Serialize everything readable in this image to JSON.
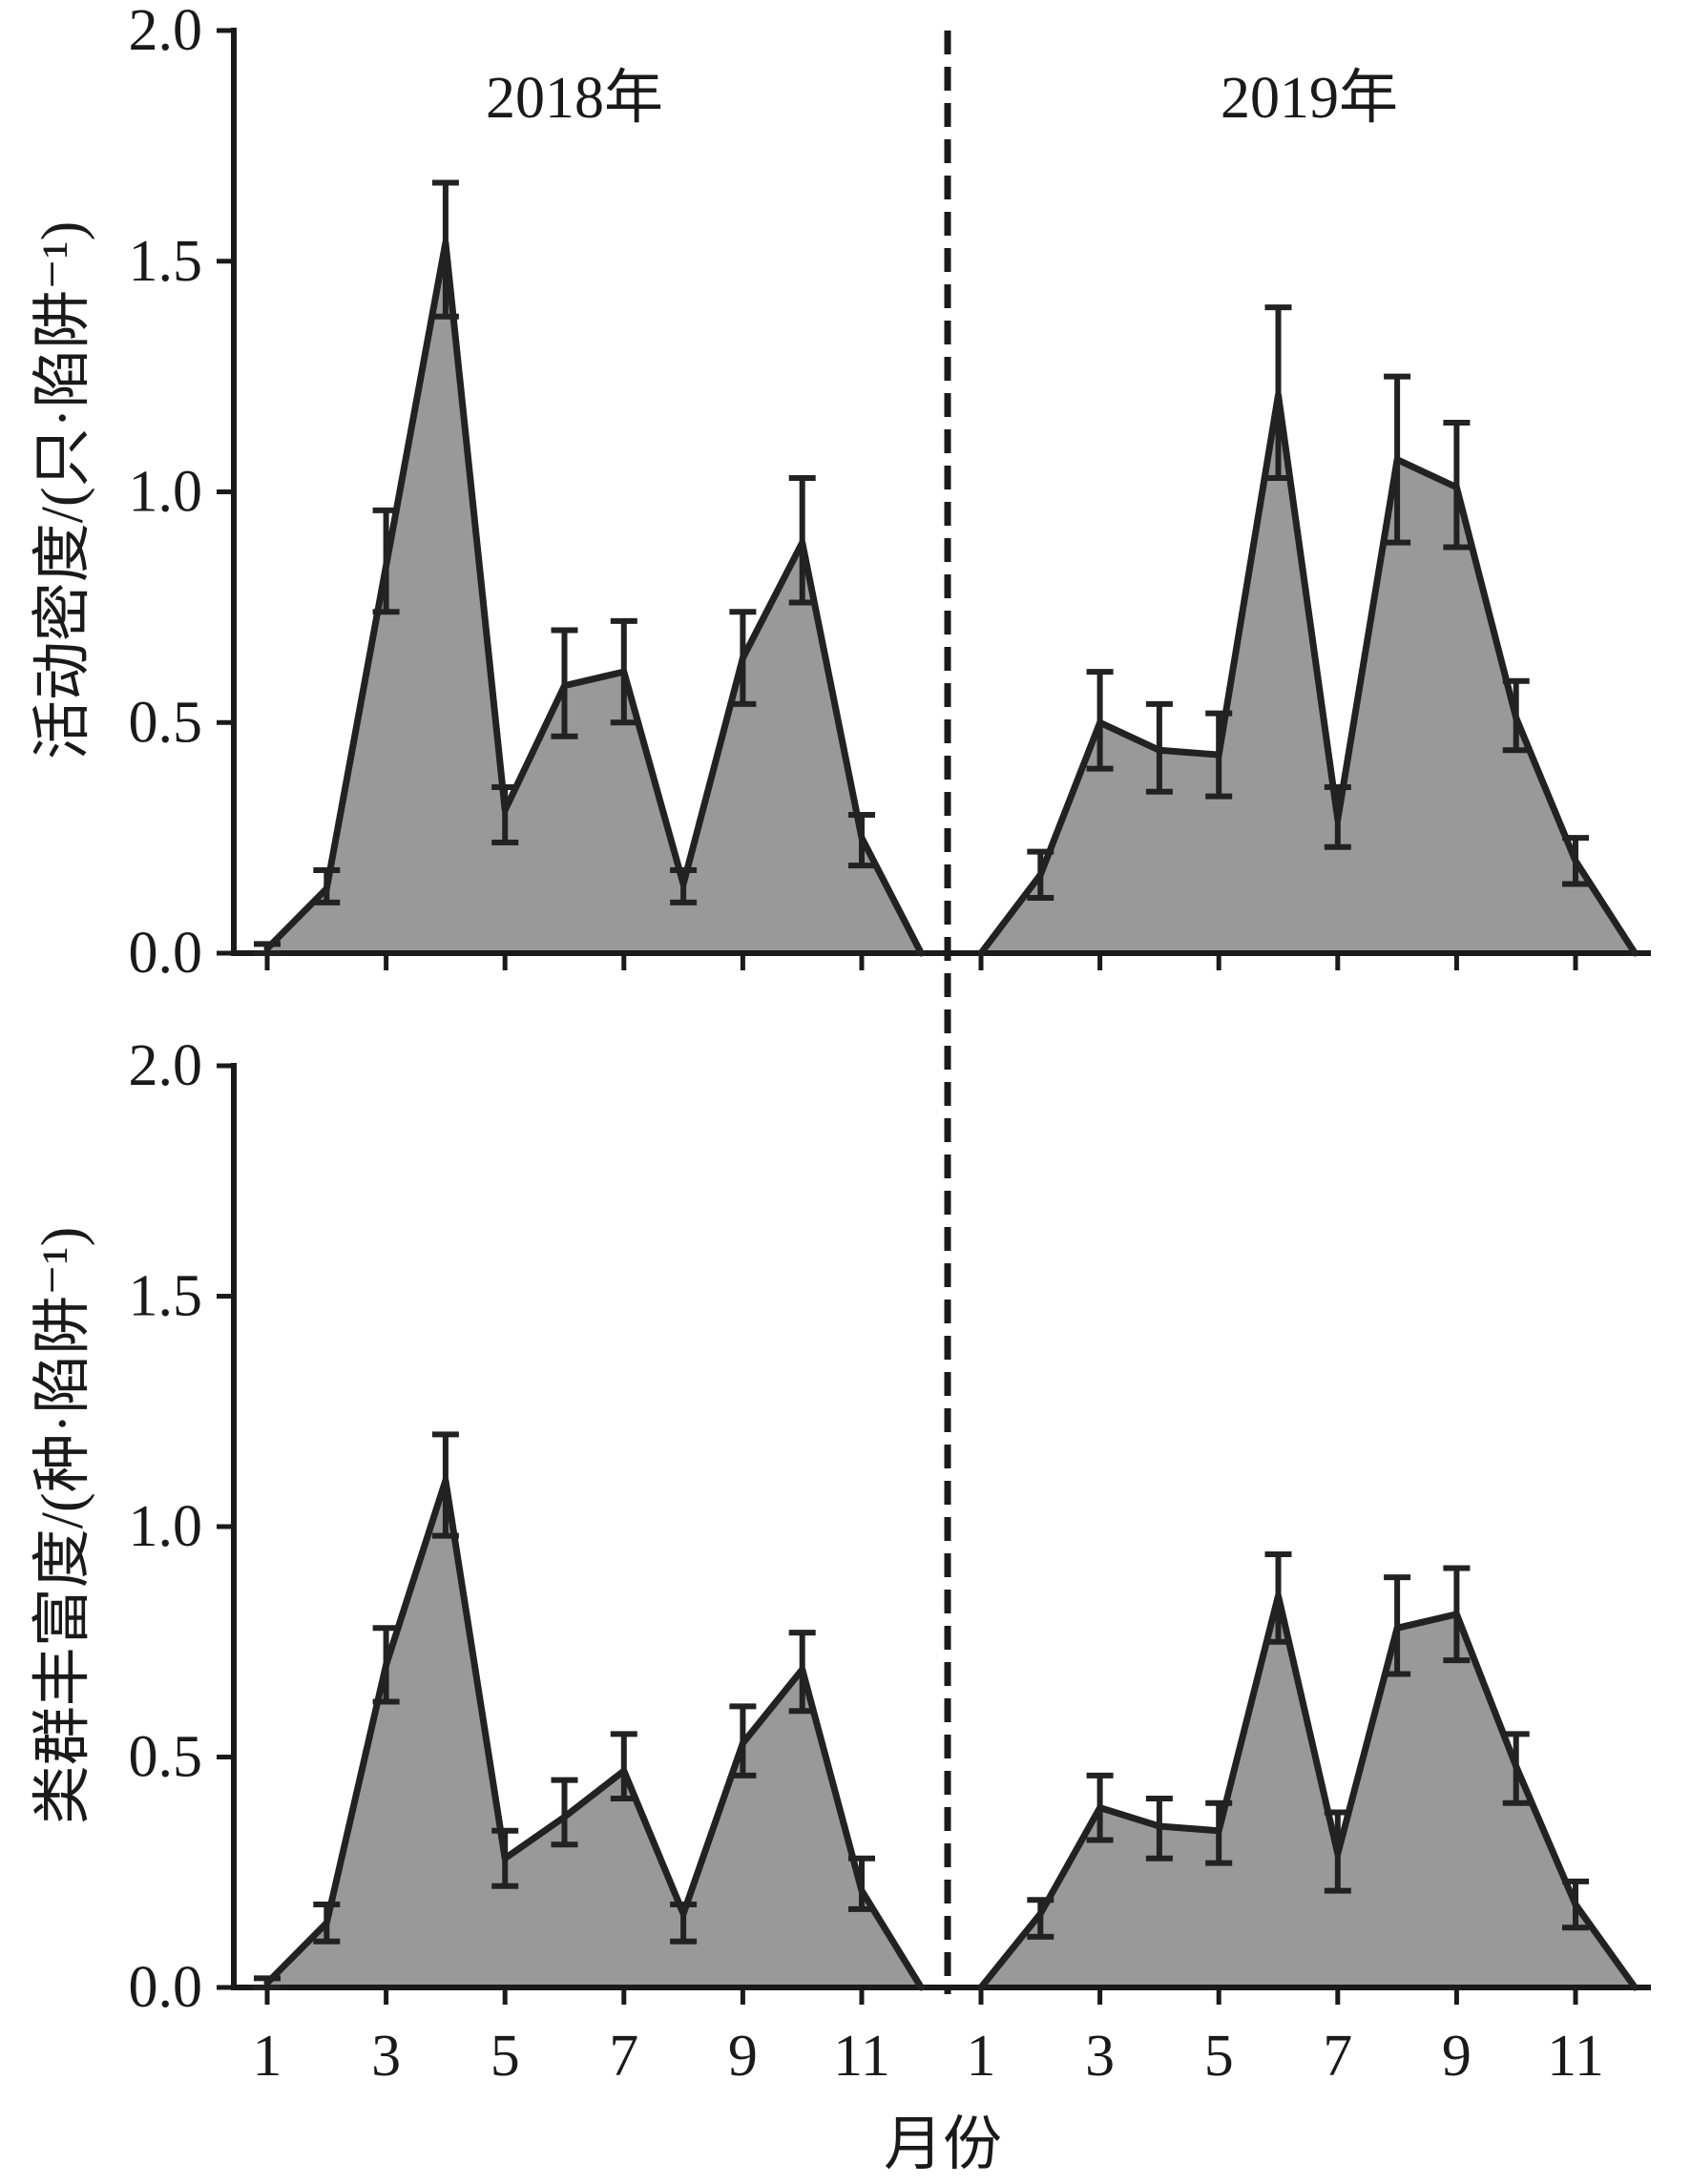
{
  "chart_data": {
    "type": "area",
    "xlabel": "月份",
    "x": [
      1,
      2,
      3,
      4,
      5,
      6,
      7,
      8,
      9,
      10,
      11,
      12
    ],
    "xticks": [
      "1",
      "3",
      "5",
      "7",
      "9",
      "11"
    ],
    "years": [
      "2018年",
      "2019年"
    ],
    "error_bars": true,
    "year_divider": "dashed",
    "colors": {
      "fill": "#999999",
      "line": "#222222",
      "axis": "#1a1a1a"
    },
    "panels": [
      {
        "ylabel": "活动密度/(只·陷阱⁻¹)",
        "ylim": [
          0,
          2.0
        ],
        "yticks": [
          "0.0",
          "0.5",
          "1.0",
          "1.5",
          "2.0"
        ],
        "show_xtick_labels": false,
        "show_year_labels": true,
        "series": [
          {
            "values": [
              0.01,
              0.14,
              0.84,
              1.54,
              0.31,
              0.58,
              0.61,
              0.15,
              0.64,
              0.89,
              0.25,
              0.0
            ],
            "err_high": [
              0.02,
              0.18,
              0.96,
              1.67,
              0.36,
              0.7,
              0.72,
              0.18,
              0.74,
              1.03,
              0.3,
              null
            ],
            "err_low": [
              0.0,
              0.11,
              0.74,
              1.38,
              0.24,
              0.47,
              0.5,
              0.11,
              0.54,
              0.76,
              0.19,
              null
            ]
          },
          {
            "values": [
              0.0,
              0.17,
              0.5,
              0.44,
              0.43,
              1.21,
              0.29,
              1.07,
              1.01,
              0.51,
              0.2,
              0.0
            ],
            "err_high": [
              null,
              0.22,
              0.61,
              0.54,
              0.52,
              1.4,
              0.36,
              1.25,
              1.15,
              0.59,
              0.25,
              null
            ],
            "err_low": [
              null,
              0.12,
              0.4,
              0.35,
              0.34,
              1.03,
              0.23,
              0.89,
              0.88,
              0.44,
              0.15,
              null
            ]
          }
        ]
      },
      {
        "ylabel": "类群丰富度/(种·陷阱⁻¹)",
        "ylim": [
          0,
          2.0
        ],
        "yticks": [
          "0.0",
          "0.5",
          "1.0",
          "1.5",
          "2.0"
        ],
        "show_xtick_labels": true,
        "show_year_labels": false,
        "series": [
          {
            "values": [
              0.01,
              0.14,
              0.7,
              1.1,
              0.28,
              0.37,
              0.47,
              0.16,
              0.53,
              0.69,
              0.21,
              0.0
            ],
            "err_high": [
              0.02,
              0.18,
              0.78,
              1.2,
              0.34,
              0.45,
              0.55,
              0.18,
              0.61,
              0.77,
              0.28,
              null
            ],
            "err_low": [
              0.0,
              0.1,
              0.62,
              0.98,
              0.22,
              0.31,
              0.41,
              0.1,
              0.46,
              0.6,
              0.17,
              null
            ]
          },
          {
            "values": [
              0.0,
              0.16,
              0.39,
              0.35,
              0.34,
              0.85,
              0.29,
              0.78,
              0.81,
              0.48,
              0.18,
              0.0
            ],
            "err_high": [
              null,
              0.19,
              0.46,
              0.41,
              0.4,
              0.94,
              0.38,
              0.89,
              0.91,
              0.55,
              0.23,
              null
            ],
            "err_low": [
              null,
              0.11,
              0.32,
              0.28,
              0.27,
              0.75,
              0.21,
              0.68,
              0.71,
              0.4,
              0.13,
              null
            ]
          }
        ]
      }
    ]
  }
}
